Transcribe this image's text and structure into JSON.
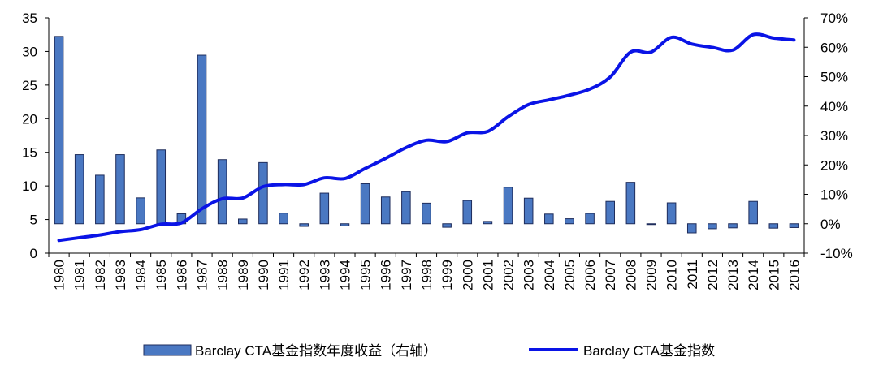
{
  "chart_data": {
    "type": "bar+line",
    "categories": [
      "1980",
      "1981",
      "1982",
      "1983",
      "1984",
      "1985",
      "1986",
      "1987",
      "1988",
      "1989",
      "1990",
      "1991",
      "1992",
      "1993",
      "1994",
      "1995",
      "1996",
      "1997",
      "1998",
      "1999",
      "2000",
      "2001",
      "2002",
      "2003",
      "2004",
      "2005",
      "2006",
      "2007",
      "2008",
      "2009",
      "2010",
      "2011",
      "2012",
      "2013",
      "2014",
      "2015",
      "2016"
    ],
    "left_axis": {
      "min": 0,
      "max": 35,
      "ticks": [
        "0",
        "5",
        "10",
        "15",
        "20",
        "25",
        "30",
        "35"
      ]
    },
    "right_axis": {
      "min": -10,
      "max": 70,
      "ticks": [
        "-10%",
        "0%",
        "10%",
        "20%",
        "30%",
        "40%",
        "50%",
        "60%",
        "70%"
      ]
    },
    "series": [
      {
        "name": "Barclay CTA基金指数年度收益（右轴）",
        "type": "bar",
        "axis": "right",
        "color": "#4a78c2",
        "border": "#1f2d5c",
        "values": [
          63.7,
          23.5,
          16.5,
          23.5,
          8.8,
          25.1,
          3.4,
          57.3,
          21.8,
          1.6,
          20.8,
          3.6,
          -0.9,
          10.4,
          -0.7,
          13.6,
          9.1,
          10.9,
          7.0,
          -1.2,
          7.9,
          0.8,
          12.4,
          8.7,
          3.3,
          1.7,
          3.5,
          7.6,
          14.1,
          -0.1,
          7.1,
          -3.1,
          -1.7,
          -1.4,
          7.6,
          -1.5,
          -1.3
        ]
      },
      {
        "name": "Barclay CTA基金指数",
        "type": "line",
        "axis": "left",
        "color": "#0a14e6",
        "values": [
          1.9,
          2.3,
          2.7,
          3.2,
          3.5,
          4.3,
          4.5,
          6.6,
          8.1,
          8.2,
          9.9,
          10.2,
          10.2,
          11.2,
          11.1,
          12.6,
          14.1,
          15.7,
          16.8,
          16.6,
          17.9,
          18.1,
          20.3,
          22.1,
          22.8,
          23.5,
          24.4,
          26.2,
          29.9,
          29.9,
          32.1,
          31.1,
          30.6,
          30.2,
          32.5,
          32.0,
          31.7
        ]
      }
    ]
  }
}
